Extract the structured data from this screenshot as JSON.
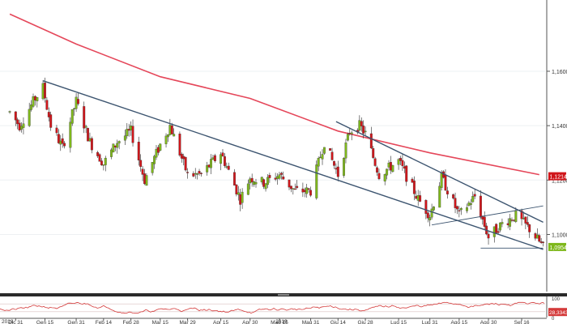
{
  "toolbar": {
    "buttons": [
      {
        "icon": "cursor-icon"
      },
      {
        "icon": "pencil-icon"
      },
      {
        "icon": "magnet-icon"
      },
      {
        "icon": "settings-icon"
      },
      {
        "icon": "expand-icon"
      }
    ],
    "badge": "0"
  },
  "chart_data": {
    "type": "candlestick",
    "instrument_colors": {
      "up": "#7fb81c",
      "down": "#d0161b",
      "ma": "#e5475a",
      "trend": "#3d5570",
      "oscillator": "#d43a3a"
    },
    "price_axis": {
      "range": [
        1.079,
        1.185
      ],
      "ticks": [
        {
          "value": 1.16,
          "label": "1,1600"
        },
        {
          "value": 1.14,
          "label": "1,1400"
        },
        {
          "value": 1.12,
          "label": "1,1200"
        },
        {
          "value": 1.1,
          "label": "1,1000"
        }
      ],
      "markers": [
        {
          "value": 1.1214,
          "label": "1,1214",
          "color": "#d0161b"
        },
        {
          "value": 1.0954,
          "label": "1,0954",
          "color": "#7fb81c"
        }
      ]
    },
    "x_axis": {
      "ticks": [
        "Dic 31",
        "Gen 15",
        "Gen 31",
        "Feb 14",
        "Feb 28",
        "Mar 15",
        "Mar 29",
        "Apr 15",
        "Apr 30",
        "Mag 15",
        "Mag 31",
        "Giu 14",
        "Giu 28",
        "Lug 15",
        "Lug 31",
        "Ago 15",
        "Ago 30",
        "Set 16"
      ],
      "years": [
        "2018",
        "2019"
      ]
    },
    "moving_average": [
      {
        "date": "2018-12-28",
        "value": 1.181
      },
      {
        "date": "2019-01-31",
        "value": 1.17
      },
      {
        "date": "2019-03-15",
        "value": 1.158
      },
      {
        "date": "2019-04-30",
        "value": 1.15
      },
      {
        "date": "2019-06-14",
        "value": 1.138
      },
      {
        "date": "2019-07-31",
        "value": 1.13
      },
      {
        "date": "2019-09-25",
        "value": 1.122
      }
    ],
    "trend_lines": [
      {
        "from": {
          "date": "2019-01-14",
          "value": 1.1565
        },
        "to": {
          "date": "2019-09-27",
          "value": 1.0945
        }
      },
      {
        "from": {
          "date": "2019-06-13",
          "value": 1.1415
        },
        "to": {
          "date": "2019-09-27",
          "value": 1.1045
        }
      },
      {
        "from": {
          "date": "2019-08-01",
          "value": 1.1035
        },
        "to": {
          "date": "2019-09-27",
          "value": 1.1105
        }
      },
      {
        "from": {
          "date": "2019-08-26",
          "value": 1.095
        },
        "to": {
          "date": "2019-09-27",
          "value": 1.095
        }
      }
    ],
    "close_series": [
      {
        "date": "2018-12-28",
        "value": 1.145
      },
      {
        "date": "2019-01-02",
        "value": 1.14
      },
      {
        "date": "2019-01-10",
        "value": 1.15
      },
      {
        "date": "2019-01-14",
        "value": 1.154
      },
      {
        "date": "2019-01-18",
        "value": 1.14
      },
      {
        "date": "2019-01-24",
        "value": 1.132
      },
      {
        "date": "2019-01-31",
        "value": 1.149
      },
      {
        "date": "2019-02-07",
        "value": 1.134
      },
      {
        "date": "2019-02-14",
        "value": 1.126
      },
      {
        "date": "2019-02-21",
        "value": 1.134
      },
      {
        "date": "2019-02-28",
        "value": 1.138
      },
      {
        "date": "2019-03-07",
        "value": 1.12
      },
      {
        "date": "2019-03-15",
        "value": 1.133
      },
      {
        "date": "2019-03-20",
        "value": 1.14
      },
      {
        "date": "2019-03-29",
        "value": 1.122
      },
      {
        "date": "2019-04-05",
        "value": 1.122
      },
      {
        "date": "2019-04-15",
        "value": 1.13
      },
      {
        "date": "2019-04-25",
        "value": 1.113
      },
      {
        "date": "2019-04-30",
        "value": 1.121
      },
      {
        "date": "2019-05-07",
        "value": 1.119
      },
      {
        "date": "2019-05-15",
        "value": 1.122
      },
      {
        "date": "2019-05-23",
        "value": 1.116
      },
      {
        "date": "2019-05-31",
        "value": 1.116
      },
      {
        "date": "2019-06-07",
        "value": 1.134
      },
      {
        "date": "2019-06-14",
        "value": 1.122
      },
      {
        "date": "2019-06-20",
        "value": 1.138
      },
      {
        "date": "2019-06-25",
        "value": 1.14
      },
      {
        "date": "2019-06-28",
        "value": 1.137
      },
      {
        "date": "2019-07-05",
        "value": 1.122
      },
      {
        "date": "2019-07-15",
        "value": 1.127
      },
      {
        "date": "2019-07-25",
        "value": 1.113
      },
      {
        "date": "2019-07-31",
        "value": 1.107
      },
      {
        "date": "2019-08-06",
        "value": 1.121
      },
      {
        "date": "2019-08-15",
        "value": 1.107
      },
      {
        "date": "2019-08-23",
        "value": 1.114
      },
      {
        "date": "2019-08-30",
        "value": 1.099
      },
      {
        "date": "2019-09-06",
        "value": 1.104
      },
      {
        "date": "2019-09-13",
        "value": 1.107
      },
      {
        "date": "2019-09-20",
        "value": 1.102
      },
      {
        "date": "2019-09-27",
        "value": 1.0954
      }
    ],
    "oscillator": {
      "range": [
        0,
        100
      ],
      "ticks": [
        {
          "value": 100,
          "label": "100"
        },
        {
          "value": 0,
          "label": "0"
        }
      ],
      "marker": {
        "value": 28.3343,
        "label": "28,3343"
      }
    }
  }
}
